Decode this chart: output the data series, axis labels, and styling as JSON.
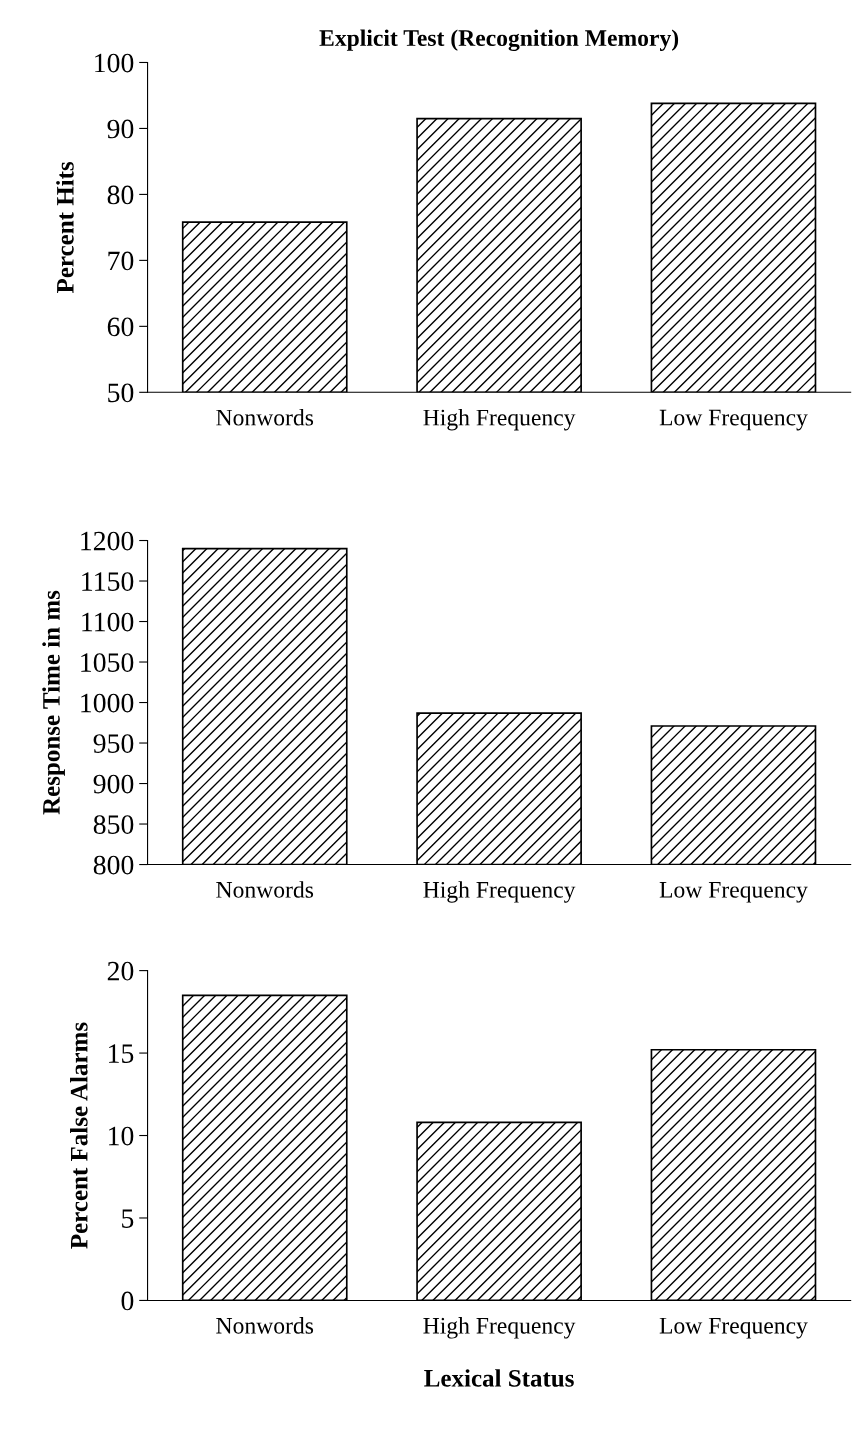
{
  "chart_data": [
    {
      "type": "bar",
      "title": "Explicit Test (Recognition Memory)",
      "ylabel": "Percent Hits",
      "categories": [
        "Nonwords",
        "High Frequency",
        "Low Frequency"
      ],
      "values": [
        75.8,
        91.5,
        93.8
      ],
      "color": "#000000",
      "ylim": [
        50,
        100
      ],
      "yticks": [
        50,
        60,
        70,
        80,
        90,
        100
      ],
      "grid": false,
      "legend": false
    },
    {
      "type": "bar",
      "ylabel": "Response Time in ms",
      "categories": [
        "Nonwords",
        "High Frequency",
        "Low Frequency"
      ],
      "values": [
        1190,
        987,
        971
      ],
      "color": "#000000",
      "ylim": [
        800,
        1200
      ],
      "yticks": [
        800,
        850,
        900,
        950,
        1000,
        1050,
        1100,
        1150,
        1200
      ],
      "grid": false,
      "legend": false
    },
    {
      "type": "bar",
      "ylabel": "Percent False Alarms",
      "xlabel": "Lexical Status",
      "categories": [
        "Nonwords",
        "High Frequency",
        "Low Frequency"
      ],
      "values": [
        18.5,
        10.8,
        15.2
      ],
      "color": "#000000",
      "ylim": [
        0,
        20
      ],
      "yticks": [
        0,
        5,
        10,
        15,
        20
      ],
      "grid": false,
      "legend": false
    }
  ]
}
